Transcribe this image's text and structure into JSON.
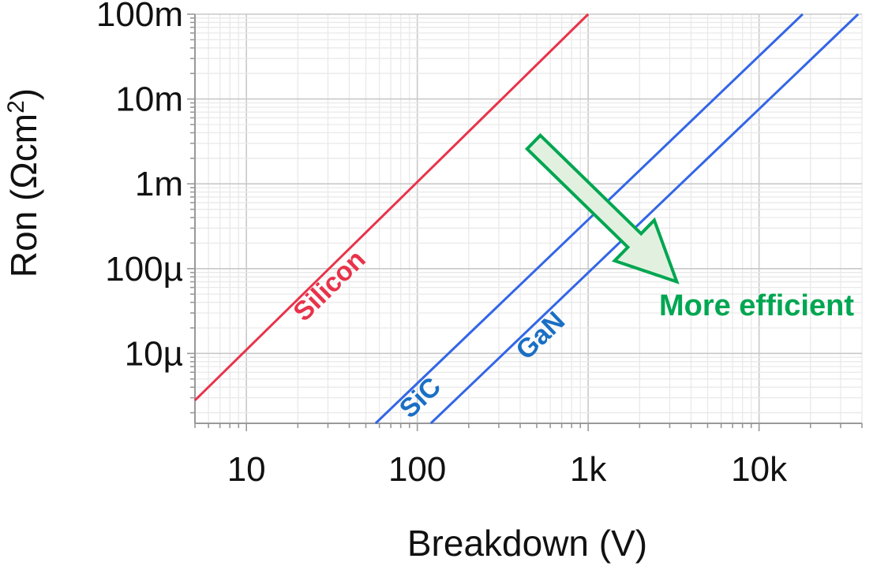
{
  "chart_data": {
    "type": "line",
    "title": "",
    "xlabel": "Breakdown (V)",
    "ylabel_main": "Ron (Ωcm",
    "ylabel_sup": "2",
    "ylabel_end": ")",
    "xscale": "log",
    "yscale": "log",
    "xlim": [
      5,
      40000
    ],
    "ylim": [
      1.5e-06,
      0.1
    ],
    "grid": true,
    "x_ticks": [
      {
        "value": 10,
        "label": "10"
      },
      {
        "value": 100,
        "label": "100"
      },
      {
        "value": 1000,
        "label": "1k"
      },
      {
        "value": 10000,
        "label": "10k"
      }
    ],
    "y_ticks": [
      {
        "value": 1e-05,
        "label": "10µ"
      },
      {
        "value": 0.0001,
        "label": "100µ"
      },
      {
        "value": 0.001,
        "label": "1m"
      },
      {
        "value": 0.01,
        "label": "10m"
      },
      {
        "value": 0.1,
        "label": "100m"
      }
    ],
    "series": [
      {
        "name": "Silicon",
        "color": "#e8334a",
        "label_color": "#e8334a",
        "x": [
          5,
          1000
        ],
        "y": [
          2.8e-06,
          0.1
        ],
        "label_at": 18
      },
      {
        "name": "SiC",
        "color": "#3366e6",
        "label_color": "#1a6fc4",
        "x": [
          57,
          18000
        ],
        "y": [
          1.5e-06,
          0.1
        ],
        "label_at": 75
      },
      {
        "name": "GaN",
        "color": "#3366e6",
        "label_color": "#1a6fc4",
        "x": [
          120,
          38000
        ],
        "y": [
          1.5e-06,
          0.1
        ],
        "label_at": 360
      }
    ],
    "annotation": {
      "text": "More efficient",
      "color": "#00a651",
      "fill": "#e2f1df",
      "arrow_from": [
        480,
        0.0031
      ],
      "arrow_to": [
        3300,
        7e-05
      ]
    }
  }
}
